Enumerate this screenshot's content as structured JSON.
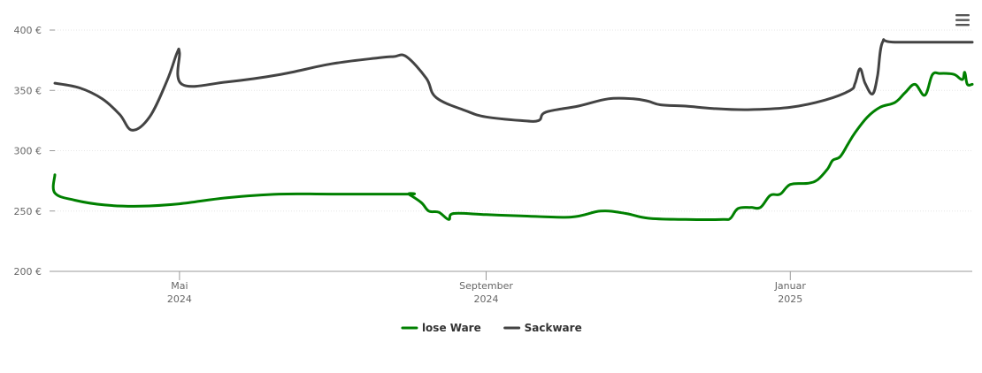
{
  "chart_data": {
    "type": "line",
    "title": "",
    "xlabel": "",
    "ylabel": "",
    "ylim": [
      200,
      400
    ],
    "y_ticks": [
      {
        "value": 200,
        "label": "200 €"
      },
      {
        "value": 250,
        "label": "250 €"
      },
      {
        "value": 300,
        "label": "300 €"
      },
      {
        "value": 350,
        "label": "350 €"
      },
      {
        "value": 400,
        "label": "400 €"
      }
    ],
    "x_range": [
      "2024-03-12",
      "2025-03-15"
    ],
    "x_ticks": [
      {
        "date": "2024-05-01",
        "month": "Mai",
        "year": "2024"
      },
      {
        "date": "2024-09-01",
        "month": "September",
        "year": "2024"
      },
      {
        "date": "2025-01-01",
        "month": "Januar",
        "year": "2025"
      }
    ],
    "grid": true,
    "legend_position": "bottom-center",
    "series": [
      {
        "name": "lose Ware",
        "color": "#008000",
        "points": [
          [
            "2024-03-12",
            280
          ],
          [
            "2024-03-12",
            265
          ],
          [
            "2024-03-20",
            259
          ],
          [
            "2024-04-01",
            255
          ],
          [
            "2024-04-15",
            254
          ],
          [
            "2024-05-01",
            256
          ],
          [
            "2024-05-20",
            261
          ],
          [
            "2024-06-10",
            264
          ],
          [
            "2024-07-01",
            264
          ],
          [
            "2024-08-01",
            264
          ],
          [
            "2024-08-01",
            264
          ],
          [
            "2024-08-06",
            257
          ],
          [
            "2024-08-09",
            250
          ],
          [
            "2024-08-13",
            249
          ],
          [
            "2024-08-17",
            243
          ],
          [
            "2024-08-19",
            248
          ],
          [
            "2024-09-01",
            247
          ],
          [
            "2024-09-15",
            246
          ],
          [
            "2024-10-05",
            245
          ],
          [
            "2024-10-17",
            250
          ],
          [
            "2024-10-27",
            248
          ],
          [
            "2024-11-05",
            244
          ],
          [
            "2024-11-20",
            243
          ],
          [
            "2024-12-05",
            243
          ],
          [
            "2024-12-08",
            244
          ],
          [
            "2024-12-11",
            252
          ],
          [
            "2024-12-16",
            253
          ],
          [
            "2024-12-20",
            253
          ],
          [
            "2024-12-24",
            263
          ],
          [
            "2024-12-28",
            264
          ],
          [
            "2025-01-01",
            272
          ],
          [
            "2025-01-08",
            273
          ],
          [
            "2025-01-12",
            276
          ],
          [
            "2025-01-16",
            285
          ],
          [
            "2025-01-18",
            292
          ],
          [
            "2025-01-21",
            295
          ],
          [
            "2025-01-24",
            305
          ],
          [
            "2025-01-27",
            315
          ],
          [
            "2025-02-01",
            328
          ],
          [
            "2025-02-06",
            336
          ],
          [
            "2025-02-12",
            340
          ],
          [
            "2025-02-16",
            348
          ],
          [
            "2025-02-20",
            355
          ],
          [
            "2025-02-24",
            346
          ],
          [
            "2025-02-27",
            363
          ],
          [
            "2025-03-02",
            364
          ],
          [
            "2025-03-05",
            364
          ],
          [
            "2025-03-08",
            363
          ],
          [
            "2025-03-11",
            359
          ],
          [
            "2025-03-12",
            365
          ],
          [
            "2025-03-13",
            355
          ],
          [
            "2025-03-15",
            355
          ]
        ]
      },
      {
        "name": "Sackware",
        "color": "#434343",
        "points": [
          [
            "2024-03-12",
            356
          ],
          [
            "2024-03-22",
            352
          ],
          [
            "2024-03-31",
            343
          ],
          [
            "2024-04-07",
            330
          ],
          [
            "2024-04-12",
            317
          ],
          [
            "2024-04-19",
            328
          ],
          [
            "2024-04-26",
            358
          ],
          [
            "2024-04-30",
            381
          ],
          [
            "2024-05-01",
            381
          ],
          [
            "2024-05-02",
            355
          ],
          [
            "2024-05-20",
            357
          ],
          [
            "2024-06-10",
            363
          ],
          [
            "2024-07-01",
            372
          ],
          [
            "2024-07-20",
            377
          ],
          [
            "2024-07-26",
            378
          ],
          [
            "2024-07-31",
            378
          ],
          [
            "2024-08-08",
            360
          ],
          [
            "2024-08-12",
            344
          ],
          [
            "2024-08-24",
            333
          ],
          [
            "2024-09-01",
            328
          ],
          [
            "2024-09-15",
            325
          ],
          [
            "2024-09-22",
            325
          ],
          [
            "2024-09-25",
            332
          ],
          [
            "2024-10-08",
            337
          ],
          [
            "2024-10-20",
            343
          ],
          [
            "2024-10-30",
            343
          ],
          [
            "2024-11-05",
            341
          ],
          [
            "2024-11-10",
            338
          ],
          [
            "2024-11-20",
            337
          ],
          [
            "2024-12-01",
            335
          ],
          [
            "2024-12-15",
            334
          ],
          [
            "2025-01-01",
            336
          ],
          [
            "2025-01-15",
            342
          ],
          [
            "2025-01-25",
            350
          ],
          [
            "2025-01-27",
            356
          ],
          [
            "2025-01-29",
            368
          ],
          [
            "2025-01-31",
            356
          ],
          [
            "2025-02-03",
            347
          ],
          [
            "2025-02-05",
            362
          ],
          [
            "2025-02-07",
            390
          ],
          [
            "2025-02-12",
            390
          ],
          [
            "2025-03-15",
            390
          ]
        ]
      }
    ]
  },
  "toolbar": {
    "menu_icon": "hamburger-menu-icon"
  }
}
